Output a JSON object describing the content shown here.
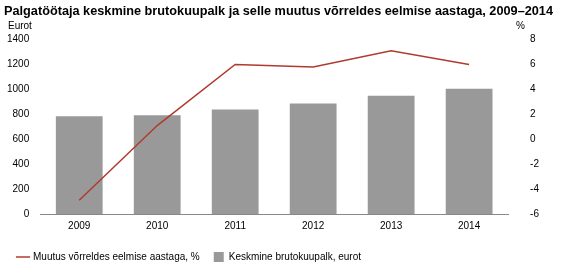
{
  "chart_data": {
    "type": "bar",
    "title": "Palgatöötaja keskmine brutokuupalk ja selle muutus võrreldes eelmise aastaga, 2009–2014",
    "ylabel": "Eurot",
    "y2label": "%",
    "categories": [
      "2009",
      "2010",
      "2011",
      "2012",
      "2013",
      "2014"
    ],
    "series": [
      {
        "name": "Keskmine brutokuupalk, eurot",
        "type": "bar",
        "color": "#999999",
        "values": [
          784,
          792,
          839,
          887,
          949,
          1005
        ]
      },
      {
        "name": "Muutus võrreldes eelmise aastaga, %",
        "type": "line",
        "color": "#b03a2e",
        "axis": "y2",
        "values": [
          -4.9,
          1.1,
          6.0,
          5.8,
          7.1,
          6.0
        ]
      }
    ],
    "ylim": [
      0,
      1400
    ],
    "yticks": [
      0,
      200,
      400,
      600,
      800,
      1000,
      1200,
      1400
    ],
    "y2lim": [
      -6,
      8
    ],
    "y2ticks": [
      -6,
      -4,
      -2,
      0,
      2,
      4,
      6,
      8
    ],
    "grid": false,
    "legend": "bottom"
  }
}
